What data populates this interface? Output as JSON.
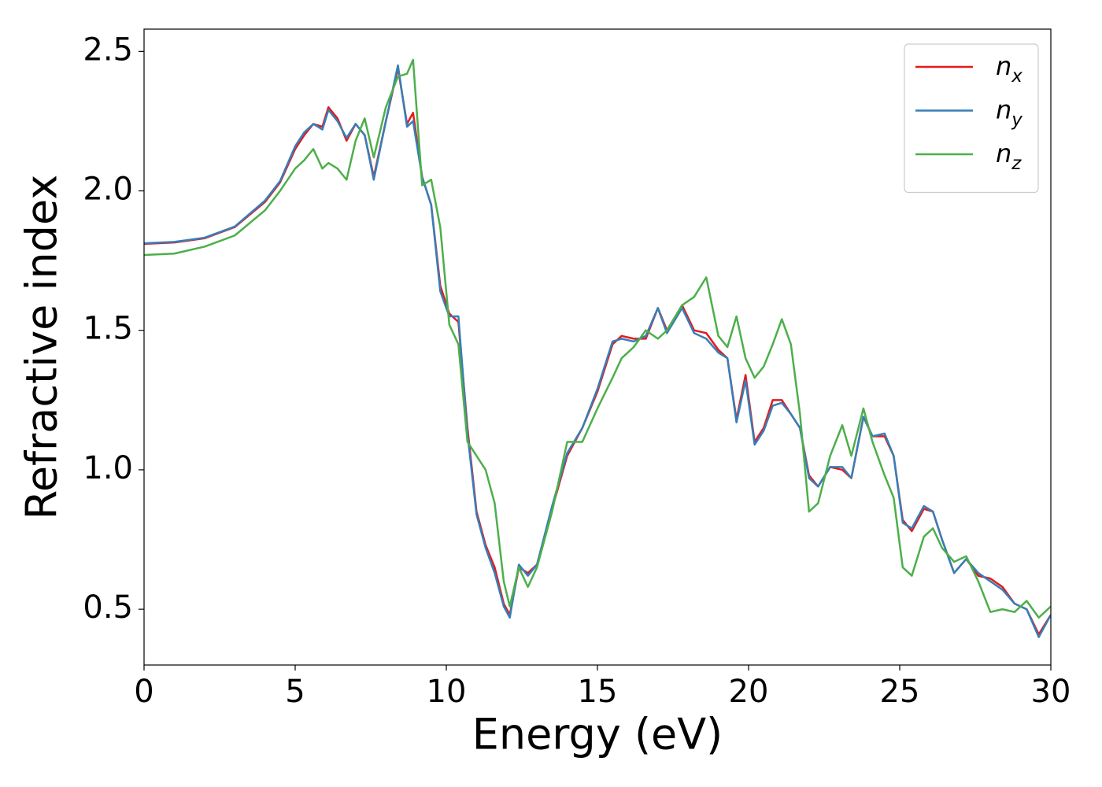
{
  "chart_data": {
    "type": "line",
    "x_label": "Energy (eV)",
    "y_label": "Refractive index",
    "xlim": [
      0,
      30
    ],
    "ylim": [
      0.3,
      2.58
    ],
    "xticks": [
      0,
      5,
      10,
      15,
      20,
      25,
      30
    ],
    "yticks": [
      0.5,
      {
        "value": 1.0,
        "label": "1.0"
      },
      1.5,
      {
        "value": 2.0,
        "label": "2.0"
      },
      2.5
    ],
    "grid": false,
    "legend": "upper right",
    "x": [
      0,
      1,
      2,
      3,
      4,
      4.5,
      5,
      5.3,
      5.6,
      5.9,
      6.1,
      6.4,
      6.7,
      7.0,
      7.3,
      7.6,
      8.0,
      8.4,
      8.7,
      8.9,
      9.2,
      9.5,
      9.8,
      10.1,
      10.4,
      10.7,
      11.0,
      11.3,
      11.6,
      11.9,
      12.1,
      12.4,
      12.7,
      13.0,
      13.5,
      14.0,
      14.5,
      15.0,
      15.5,
      15.8,
      16.2,
      16.6,
      17.0,
      17.3,
      17.8,
      18.2,
      18.6,
      19.0,
      19.3,
      19.6,
      19.9,
      20.2,
      20.5,
      20.8,
      21.1,
      21.4,
      21.7,
      22.0,
      22.3,
      22.7,
      23.1,
      23.4,
      23.8,
      24.1,
      24.5,
      24.8,
      25.1,
      25.4,
      25.8,
      26.1,
      26.4,
      26.8,
      27.2,
      27.6,
      28.0,
      28.4,
      28.8,
      29.2,
      29.6,
      30
    ],
    "series": [
      {
        "name": "n_x",
        "color": "#e41a1c",
        "values": [
          1.81,
          1.815,
          1.83,
          1.87,
          1.96,
          2.03,
          2.15,
          2.2,
          2.24,
          2.23,
          2.3,
          2.26,
          2.18,
          2.24,
          2.2,
          2.05,
          2.25,
          2.44,
          2.24,
          2.28,
          2.05,
          1.95,
          1.66,
          1.56,
          1.53,
          1.15,
          0.85,
          0.73,
          0.65,
          0.52,
          0.48,
          0.65,
          0.63,
          0.66,
          0.86,
          1.05,
          1.15,
          1.28,
          1.45,
          1.48,
          1.47,
          1.47,
          1.58,
          1.5,
          1.59,
          1.5,
          1.49,
          1.43,
          1.4,
          1.18,
          1.34,
          1.1,
          1.15,
          1.25,
          1.25,
          1.2,
          1.15,
          0.98,
          0.94,
          1.01,
          1.0,
          0.97,
          1.19,
          1.12,
          1.12,
          1.05,
          0.82,
          0.78,
          0.86,
          0.85,
          0.75,
          0.63,
          0.68,
          0.62,
          0.61,
          0.58,
          0.52,
          0.5,
          0.41,
          0.48
        ]
      },
      {
        "name": "n_y",
        "color": "#377eb8",
        "values": [
          1.812,
          1.817,
          1.832,
          1.872,
          1.965,
          2.035,
          2.16,
          2.21,
          2.24,
          2.22,
          2.29,
          2.25,
          2.19,
          2.24,
          2.2,
          2.04,
          2.25,
          2.45,
          2.23,
          2.25,
          2.05,
          1.95,
          1.64,
          1.55,
          1.55,
          1.13,
          0.84,
          0.72,
          0.63,
          0.51,
          0.47,
          0.66,
          0.62,
          0.66,
          0.87,
          1.06,
          1.15,
          1.29,
          1.46,
          1.47,
          1.46,
          1.48,
          1.58,
          1.49,
          1.58,
          1.49,
          1.47,
          1.42,
          1.4,
          1.17,
          1.32,
          1.09,
          1.14,
          1.23,
          1.24,
          1.2,
          1.15,
          0.97,
          0.94,
          1.01,
          1.01,
          0.97,
          1.19,
          1.12,
          1.13,
          1.05,
          0.81,
          0.79,
          0.87,
          0.85,
          0.75,
          0.63,
          0.68,
          0.63,
          0.6,
          0.57,
          0.52,
          0.5,
          0.4,
          0.48
        ]
      },
      {
        "name": "n_z",
        "color": "#4daf4a",
        "values": [
          1.77,
          1.775,
          1.8,
          1.84,
          1.93,
          2.0,
          2.08,
          2.11,
          2.15,
          2.08,
          2.1,
          2.08,
          2.04,
          2.18,
          2.26,
          2.12,
          2.3,
          2.41,
          2.42,
          2.47,
          2.02,
          2.04,
          1.87,
          1.52,
          1.45,
          1.1,
          1.05,
          1.0,
          0.88,
          0.6,
          0.51,
          0.65,
          0.58,
          0.65,
          0.85,
          1.1,
          1.1,
          1.22,
          1.33,
          1.4,
          1.44,
          1.5,
          1.47,
          1.5,
          1.59,
          1.62,
          1.69,
          1.48,
          1.44,
          1.55,
          1.4,
          1.33,
          1.37,
          1.45,
          1.54,
          1.45,
          1.2,
          0.85,
          0.88,
          1.05,
          1.16,
          1.05,
          1.22,
          1.1,
          0.98,
          0.9,
          0.65,
          0.62,
          0.76,
          0.79,
          0.72,
          0.67,
          0.69,
          0.6,
          0.49,
          0.5,
          0.49,
          0.53,
          0.47,
          0.51
        ]
      }
    ]
  }
}
